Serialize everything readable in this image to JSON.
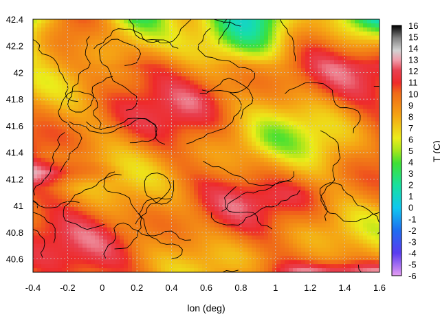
{
  "chart_data": {
    "type": "heatmap",
    "title": "",
    "xlabel": "lon (deg)",
    "ylabel": "",
    "colorbar_label": "T (C)",
    "xlim": [
      -0.4,
      1.6
    ],
    "ylim": [
      40.5,
      42.4
    ],
    "x_ticks": [
      "-0.4",
      "-0.2",
      "0",
      "0.2",
      "0.4",
      "0.6",
      "0.8",
      "1",
      "1.2",
      "1.4",
      "1.6"
    ],
    "y_ticks": [
      "40.6",
      "40.8",
      "41",
      "41.2",
      "41.4",
      "41.6",
      "41.8",
      "42",
      "42.2",
      "42.4"
    ],
    "colorbar_range": [
      -6,
      16
    ],
    "colorbar_ticks": [
      "16",
      "15",
      "14",
      "13",
      "12",
      "11",
      "10",
      "9",
      "8",
      "7",
      "6",
      "5",
      "4",
      "3",
      "2",
      "1",
      "0",
      "-1",
      "-2",
      "-3",
      "-4",
      "-5",
      "-6"
    ],
    "grid": true,
    "contours": true
  }
}
